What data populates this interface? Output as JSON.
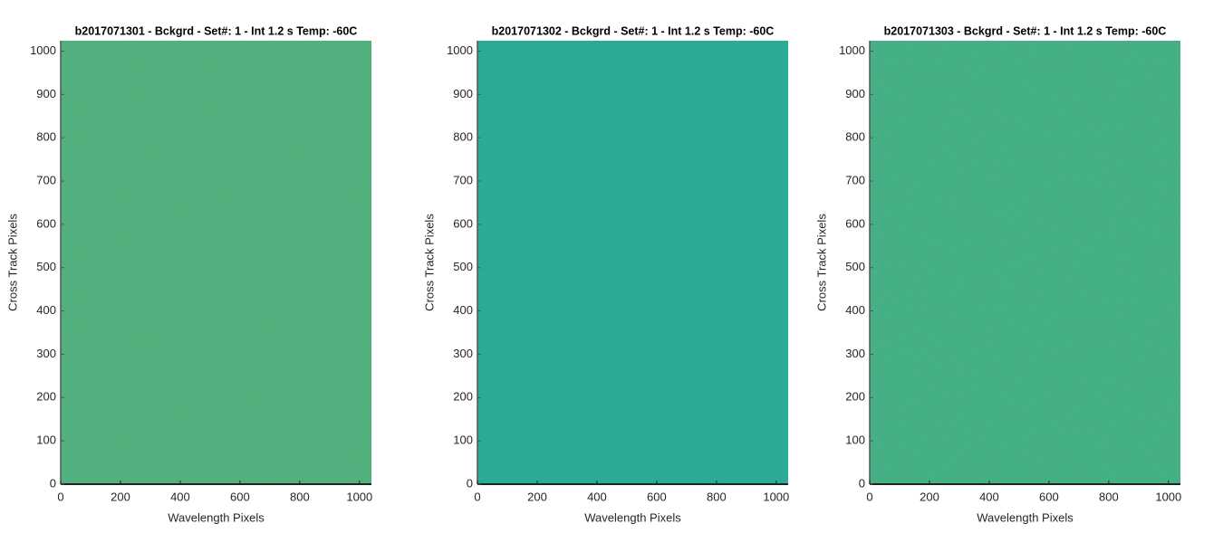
{
  "chart_data": [
    {
      "type": "image",
      "title": "b2017071301 - Bckgrd - Set#: 1 - Int 1.2 s Temp: -60C",
      "xlabel": "Wavelength Pixels",
      "ylabel": "Cross Track Pixels",
      "color": "#55b486",
      "xlim": [
        0,
        1040
      ],
      "ylim": [
        0,
        1024
      ],
      "xticks": [
        0,
        200,
        400,
        600,
        800,
        1000
      ],
      "yticks": [
        0,
        100,
        200,
        300,
        400,
        500,
        600,
        700,
        800,
        900,
        1000
      ]
    },
    {
      "type": "image",
      "title": "b2017071302 - Bckgrd - Set#: 1 - Int 1.2 s Temp: -60C",
      "xlabel": "Wavelength Pixels",
      "ylabel": "Cross Track Pixels",
      "color": "#2eaf9f",
      "xlim": [
        0,
        1040
      ],
      "ylim": [
        0,
        1024
      ],
      "xticks": [
        0,
        200,
        400,
        600,
        800,
        1000
      ],
      "yticks": [
        0,
        100,
        200,
        300,
        400,
        500,
        600,
        700,
        800,
        900,
        1000
      ]
    },
    {
      "type": "image",
      "title": "b2017071303 - Bckgrd - Set#: 1 - Int 1.2 s Temp: -60C",
      "xlabel": "Wavelength Pixels",
      "ylabel": "Cross Track Pixels",
      "color": "#48b38e",
      "xlim": [
        0,
        1040
      ],
      "ylim": [
        0,
        1024
      ],
      "xticks": [
        0,
        200,
        400,
        600,
        800,
        1000
      ],
      "yticks": [
        0,
        100,
        200,
        300,
        400,
        500,
        600,
        700,
        800,
        900,
        1000
      ]
    }
  ]
}
